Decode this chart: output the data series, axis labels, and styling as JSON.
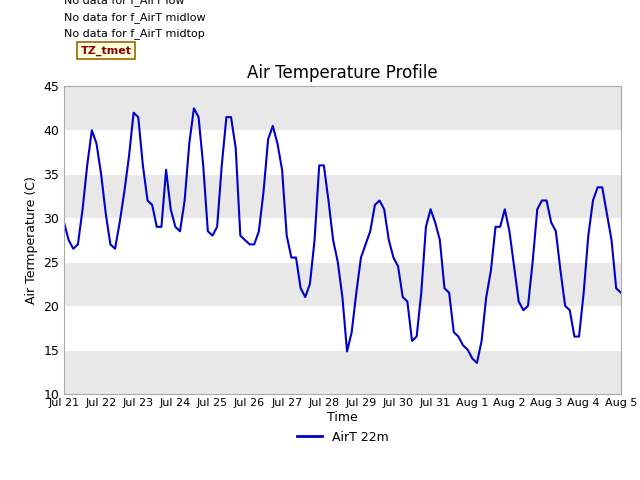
{
  "title": "Air Temperature Profile",
  "xlabel": "Time",
  "ylabel": "Air Termperature (C)",
  "ylim": [
    10,
    45
  ],
  "yticks": [
    10,
    15,
    20,
    25,
    30,
    35,
    40,
    45
  ],
  "line_color": "#0000cc",
  "line_width": 1.5,
  "legend_label": "AirT 22m",
  "fig_bg_color": "#ffffff",
  "plot_bg_color": "#ffffff",
  "band_colors": [
    "#e8e8e8",
    "#ffffff"
  ],
  "grid_color": "#ffffff",
  "annotations_top_left": [
    "No data for f_AirT low",
    "No data for f_AirT midlow",
    "No data for f_AirT midtop"
  ],
  "tz_label": "TZ_tmet",
  "x_tick_labels": [
    "Jul 21",
    "Jul 22",
    "Jul 23",
    "Jul 24",
    "Jul 25",
    "Jul 26",
    "Jul 27",
    "Jul 28",
    "Jul 29",
    "Jul 30",
    "Jul 31",
    "Aug 1",
    "Aug 2",
    "Aug 3",
    "Aug 4",
    "Aug 5"
  ],
  "time_values": [
    0,
    0.125,
    0.25,
    0.375,
    0.5,
    0.625,
    0.75,
    0.875,
    1.0,
    1.125,
    1.25,
    1.375,
    1.5,
    1.625,
    1.75,
    1.875,
    2.0,
    2.125,
    2.25,
    2.375,
    2.5,
    2.625,
    2.75,
    2.875,
    3.0,
    3.125,
    3.25,
    3.375,
    3.5,
    3.625,
    3.75,
    3.875,
    4.0,
    4.125,
    4.25,
    4.375,
    4.5,
    4.625,
    4.75,
    4.875,
    5.0,
    5.125,
    5.25,
    5.375,
    5.5,
    5.625,
    5.75,
    5.875,
    6.0,
    6.125,
    6.25,
    6.375,
    6.5,
    6.625,
    6.75,
    6.875,
    7.0,
    7.125,
    7.25,
    7.375,
    7.5,
    7.625,
    7.75,
    7.875,
    8.0,
    8.125,
    8.25,
    8.375,
    8.5,
    8.625,
    8.75,
    8.875,
    9.0,
    9.125,
    9.25,
    9.375,
    9.5,
    9.625,
    9.75,
    9.875,
    10.0,
    10.125,
    10.25,
    10.375,
    10.5,
    10.625,
    10.75,
    10.875,
    11.0,
    11.125,
    11.25,
    11.375,
    11.5,
    11.625,
    11.75,
    11.875,
    12.0,
    12.125,
    12.25,
    12.375,
    12.5,
    12.625,
    12.75,
    12.875,
    13.0,
    13.125,
    13.25,
    13.375,
    13.5,
    13.625,
    13.75,
    13.875,
    14.0,
    14.125,
    14.25,
    14.375,
    14.5,
    14.625,
    14.75,
    14.875,
    15.0
  ],
  "temp_values": [
    29.5,
    27.5,
    26.5,
    27.0,
    31.0,
    36.0,
    40.0,
    38.5,
    35.0,
    30.5,
    27.0,
    26.5,
    29.5,
    33.0,
    37.0,
    42.0,
    41.5,
    36.0,
    32.0,
    31.5,
    29.0,
    29.0,
    35.5,
    31.0,
    29.0,
    28.5,
    32.0,
    38.5,
    42.5,
    41.5,
    36.0,
    28.5,
    28.0,
    29.0,
    36.0,
    41.5,
    41.5,
    38.0,
    28.0,
    27.5,
    27.0,
    27.0,
    28.5,
    33.0,
    39.0,
    40.5,
    38.5,
    35.5,
    28.0,
    25.5,
    25.5,
    22.0,
    21.0,
    22.5,
    27.5,
    36.0,
    36.0,
    32.0,
    27.5,
    25.0,
    21.0,
    14.8,
    17.0,
    21.5,
    25.5,
    27.0,
    28.5,
    31.5,
    32.0,
    31.0,
    27.5,
    25.5,
    24.5,
    21.0,
    20.5,
    16.0,
    16.5,
    21.5,
    29.0,
    31.0,
    29.5,
    27.5,
    22.0,
    21.5,
    17.0,
    16.5,
    15.5,
    15.0,
    14.0,
    13.5,
    16.0,
    21.0,
    24.0,
    29.0,
    29.0,
    31.0,
    28.5,
    24.5,
    20.5,
    19.5,
    20.0,
    25.0,
    31.0,
    32.0,
    32.0,
    29.5,
    28.5,
    24.0,
    20.0,
    19.5,
    16.5,
    16.5,
    21.5,
    28.0,
    32.0,
    33.5,
    33.5,
    30.5,
    27.5,
    22.0,
    21.5
  ]
}
